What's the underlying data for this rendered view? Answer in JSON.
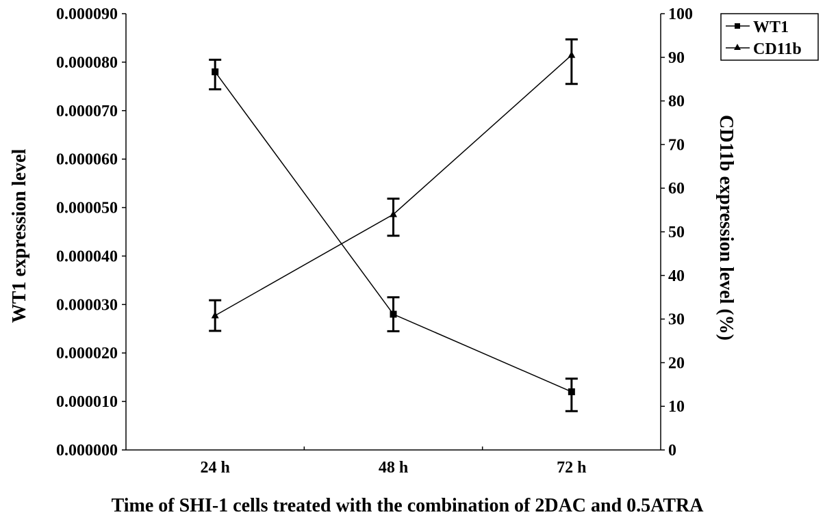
{
  "chart_data": {
    "type": "line",
    "x_categories": [
      "24 h",
      "48 h",
      "72 h"
    ],
    "xlabel": "Time of SHI-1 cells treated with the combination of 2DAC and 0.5ATRA",
    "y_left": {
      "label": "WT1 expression level",
      "range": [
        0,
        9e-05
      ],
      "tick_labels": [
        "0.000000",
        "0.000010",
        "0.000020",
        "0.000030",
        "0.000040",
        "0.000050",
        "0.000060",
        "0.000070",
        "0.000080",
        "0.000090"
      ]
    },
    "y_right": {
      "label": "CD11b expression level (%)",
      "range": [
        0,
        100
      ],
      "tick_labels": [
        "0",
        "10",
        "20",
        "30",
        "40",
        "50",
        "60",
        "70",
        "80",
        "90",
        "100"
      ]
    },
    "series": [
      {
        "name": "WT1",
        "axis": "left",
        "marker": "square",
        "values": [
          7.8e-05,
          2.8e-05,
          1.2e-05
        ],
        "err_low": [
          7.44e-05,
          2.45e-05,
          8e-06
        ],
        "err_high": [
          8.05e-05,
          3.15e-05,
          1.47e-05
        ]
      },
      {
        "name": "CD11b",
        "axis": "right",
        "marker": "triangle",
        "values": [
          30.8,
          54.0,
          90.5
        ],
        "err_low": [
          27.3,
          49.1,
          83.9
        ],
        "err_high": [
          34.3,
          57.6,
          94.1
        ]
      }
    ],
    "legend_position": "top-right",
    "grid": false
  }
}
